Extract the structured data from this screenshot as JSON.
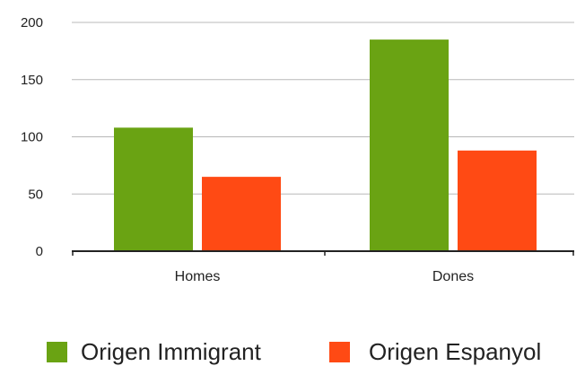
{
  "chart_data": {
    "type": "bar",
    "title": "",
    "xlabel": "",
    "ylabel": "",
    "categories": [
      "Homes",
      "Dones"
    ],
    "series": [
      {
        "name": "Origen Immigrant",
        "values": [
          108,
          185
        ],
        "color": "#6aa313"
      },
      {
        "name": "Origen Espanyol",
        "values": [
          65,
          88
        ],
        "color": "#ff4a14"
      }
    ],
    "ylim": [
      0,
      200
    ],
    "yticks": [
      0,
      50,
      100,
      150,
      200
    ],
    "grid": true,
    "legend_position": "bottom"
  }
}
